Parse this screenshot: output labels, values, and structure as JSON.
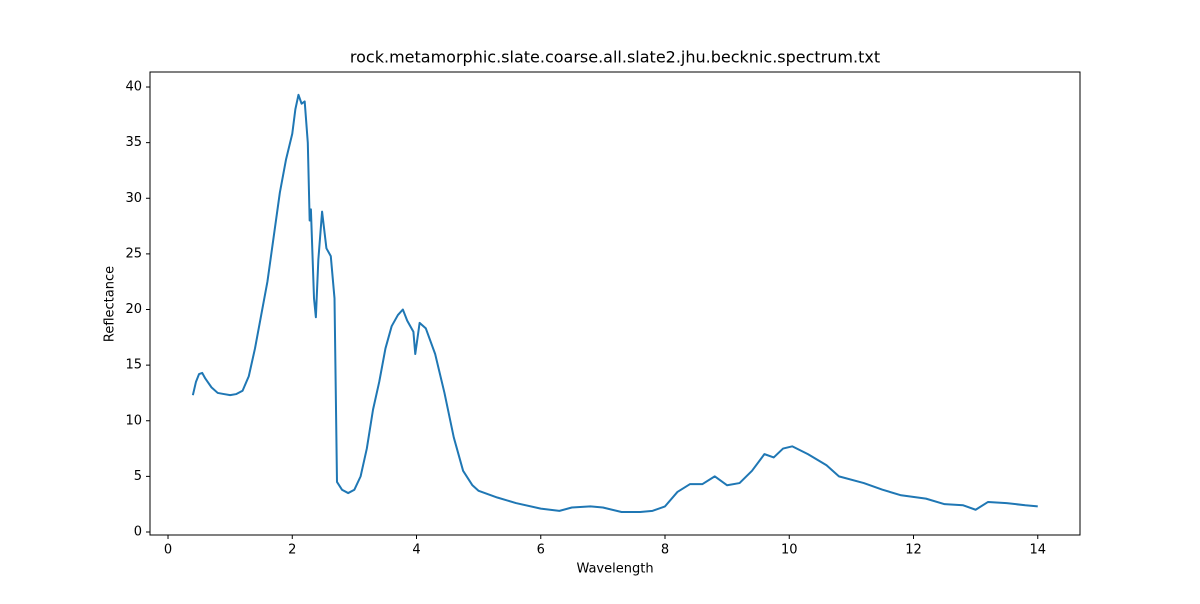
{
  "chart_data": {
    "type": "line",
    "title": "rock.metamorphic.slate.coarse.all.slate2.jhu.becknic.spectrum.txt",
    "xlabel": "Wavelength",
    "ylabel": "Reflectance",
    "xlim": [
      -0.29,
      14.68
    ],
    "ylim": [
      -0.27,
      41.35
    ],
    "xticks": [
      0,
      2,
      4,
      6,
      8,
      10,
      12,
      14
    ],
    "yticks": [
      0,
      5,
      10,
      15,
      20,
      25,
      30,
      35,
      40
    ],
    "series": [
      {
        "color": "#1f77b4",
        "x": [
          0.4,
          0.45,
          0.5,
          0.55,
          0.6,
          0.7,
          0.8,
          0.9,
          1.0,
          1.1,
          1.2,
          1.3,
          1.4,
          1.5,
          1.6,
          1.7,
          1.8,
          1.9,
          2.0,
          2.05,
          2.1,
          2.15,
          2.2,
          2.25,
          2.28,
          2.3,
          2.35,
          2.38,
          2.42,
          2.48,
          2.55,
          2.62,
          2.68,
          2.72,
          2.8,
          2.9,
          3.0,
          3.1,
          3.2,
          3.3,
          3.4,
          3.5,
          3.6,
          3.7,
          3.78,
          3.85,
          3.95,
          3.98,
          4.05,
          4.15,
          4.3,
          4.45,
          4.6,
          4.75,
          4.9,
          5.0,
          5.3,
          5.6,
          6.0,
          6.3,
          6.5,
          6.8,
          7.0,
          7.3,
          7.6,
          7.8,
          8.0,
          8.2,
          8.4,
          8.6,
          8.8,
          9.0,
          9.2,
          9.4,
          9.6,
          9.75,
          9.9,
          10.05,
          10.3,
          10.6,
          10.8,
          11.2,
          11.5,
          11.8,
          12.2,
          12.5,
          12.8,
          13.0,
          13.2,
          13.5,
          13.8,
          14.0
        ],
        "values": [
          12.3,
          13.5,
          14.2,
          14.3,
          13.8,
          13.0,
          12.5,
          12.4,
          12.3,
          12.4,
          12.7,
          14.0,
          16.5,
          19.5,
          22.5,
          26.5,
          30.5,
          33.5,
          35.8,
          38.0,
          39.3,
          38.5,
          38.7,
          35,
          28,
          29,
          21,
          19.3,
          24.5,
          28.8,
          25.5,
          24.8,
          21,
          4.5,
          3.8,
          3.5,
          3.8,
          5,
          7.5,
          11,
          13.5,
          16.5,
          18.5,
          19.5,
          20,
          19,
          18,
          16,
          18.8,
          18.3,
          16,
          12.5,
          8.5,
          5.5,
          4.2,
          3.7,
          3.1,
          2.6,
          2.1,
          1.9,
          2.2,
          2.3,
          2.2,
          1.8,
          1.8,
          1.9,
          2.3,
          3.6,
          4.3,
          4.3,
          5.0,
          4.2,
          4.4,
          5.5,
          7.0,
          6.7,
          7.5,
          7.7,
          7.0,
          6.0,
          5.0,
          4.4,
          3.8,
          3.3,
          3.0,
          2.5,
          2.4,
          2.0,
          2.7,
          2.6,
          2.4,
          2.3
        ]
      }
    ]
  }
}
